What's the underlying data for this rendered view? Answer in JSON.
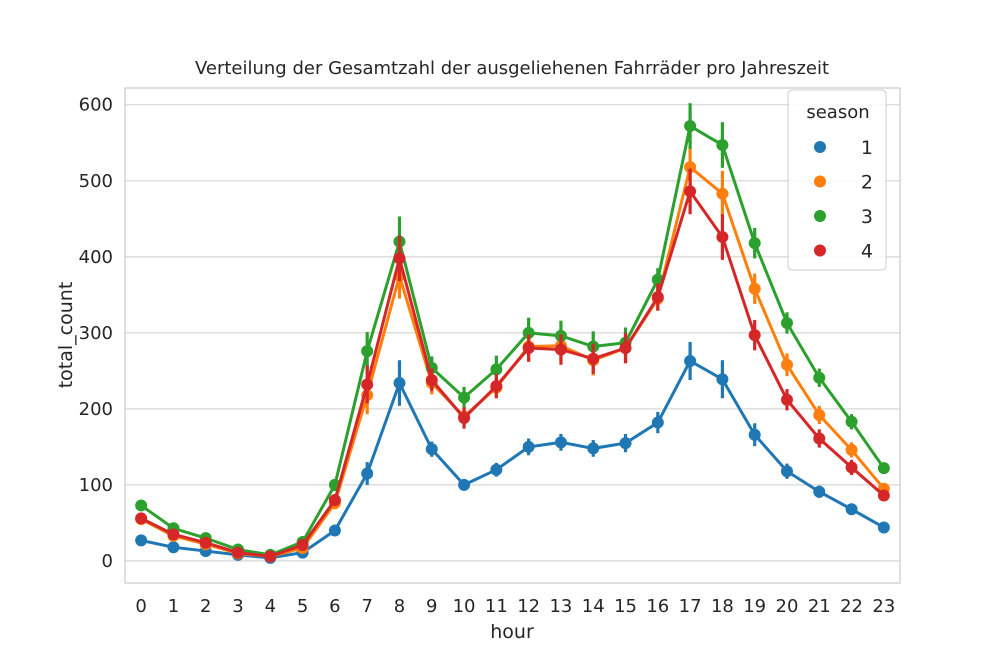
{
  "chart_data": {
    "type": "line",
    "title": "Verteilung der Gesamtzahl der ausgeliehenen Fahrräder pro Jahreszeit",
    "xlabel": "hour",
    "ylabel": "total_count",
    "x": [
      0,
      1,
      2,
      3,
      4,
      5,
      6,
      7,
      8,
      9,
      10,
      11,
      12,
      13,
      14,
      15,
      16,
      17,
      18,
      19,
      20,
      21,
      22,
      23
    ],
    "xlim": [
      -0.5,
      23.5
    ],
    "ylim": [
      -29,
      622
    ],
    "yticks": [
      0,
      100,
      200,
      300,
      400,
      500,
      600
    ],
    "grid": true,
    "legend": {
      "title": "season",
      "placement": "top-right"
    },
    "series": [
      {
        "name": "1",
        "color": "#1f77b4",
        "values": [
          27,
          18,
          13,
          8,
          4,
          11,
          40,
          115,
          234,
          147,
          100,
          120,
          150,
          156,
          148,
          155,
          182,
          263,
          239,
          166,
          118,
          91,
          68,
          44
        ],
        "ci_halfwidth": [
          3,
          2,
          2,
          1,
          1,
          2,
          4,
          15,
          30,
          10,
          7,
          9,
          11,
          11,
          11,
          12,
          14,
          25,
          25,
          15,
          10,
          8,
          5,
          4
        ]
      },
      {
        "name": "2",
        "color": "#ff7f0e",
        "values": [
          55,
          33,
          22,
          10,
          6,
          17,
          76,
          218,
          375,
          234,
          190,
          228,
          282,
          283,
          264,
          280,
          345,
          518,
          483,
          358,
          258,
          192,
          146,
          95
        ],
        "ci_halfwidth": [
          5,
          4,
          3,
          2,
          1,
          3,
          8,
          25,
          30,
          15,
          12,
          14,
          20,
          20,
          20,
          20,
          15,
          25,
          30,
          20,
          15,
          12,
          10,
          7
        ]
      },
      {
        "name": "3",
        "color": "#2ca02c",
        "values": [
          73,
          43,
          30,
          15,
          8,
          25,
          100,
          276,
          420,
          254,
          215,
          252,
          300,
          296,
          282,
          287,
          370,
          572,
          547,
          418,
          313,
          241,
          183,
          122
        ],
        "ci_halfwidth": [
          5,
          4,
          3,
          2,
          1,
          3,
          8,
          25,
          33,
          15,
          14,
          18,
          20,
          20,
          20,
          20,
          15,
          30,
          30,
          20,
          14,
          12,
          10,
          7
        ]
      },
      {
        "name": "4",
        "color": "#d62728",
        "values": [
          56,
          35,
          24,
          11,
          6,
          21,
          80,
          232,
          398,
          238,
          188,
          230,
          280,
          278,
          266,
          280,
          347,
          486,
          426,
          297,
          212,
          161,
          123,
          86
        ],
        "ci_halfwidth": [
          5,
          4,
          3,
          2,
          1,
          3,
          8,
          25,
          30,
          15,
          14,
          16,
          18,
          20,
          20,
          20,
          18,
          30,
          30,
          20,
          14,
          12,
          10,
          7
        ]
      }
    ]
  }
}
